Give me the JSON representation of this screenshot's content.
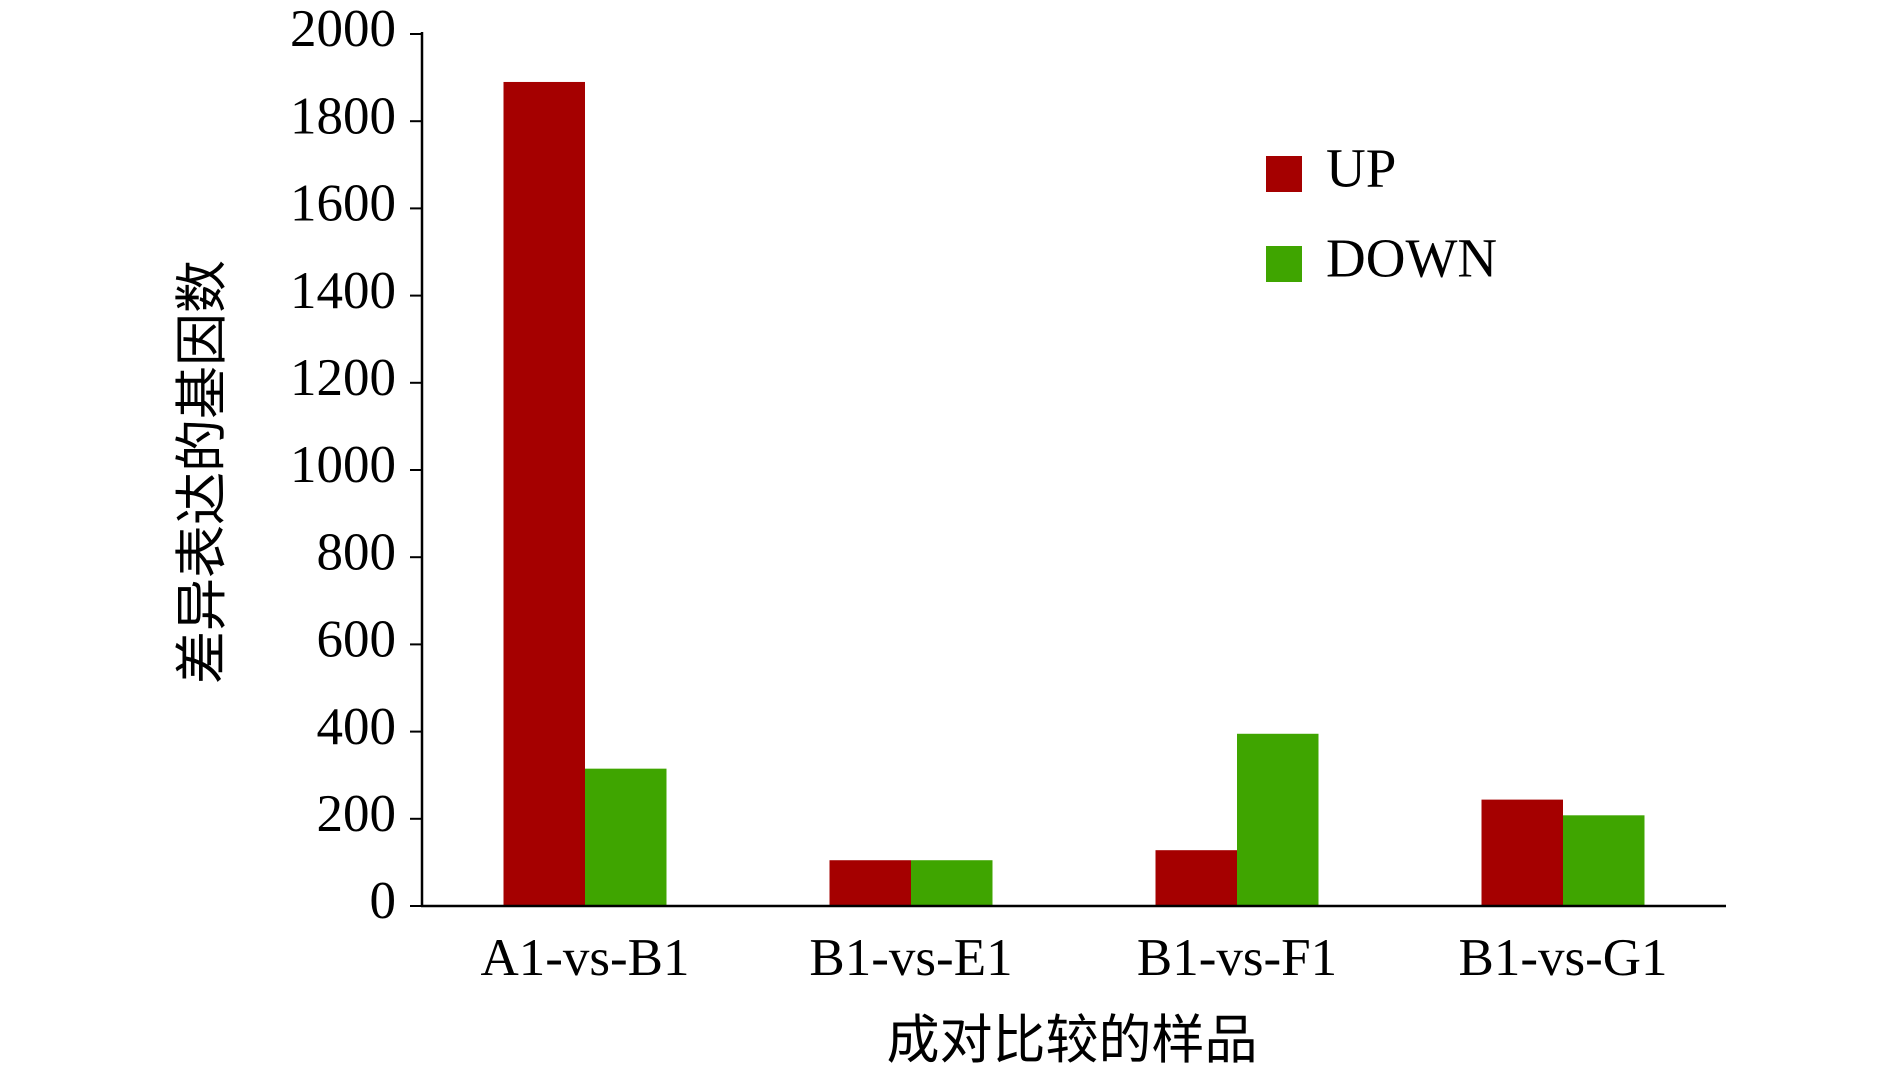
{
  "chart_data": {
    "type": "bar",
    "x_label": "成对比较的样品",
    "y_label": "差异表达的基因数",
    "categories": [
      "A1-vs-B1",
      "B1-vs-E1",
      "B1-vs-F1",
      "B1-vs-G1"
    ],
    "series": [
      {
        "name": "UP",
        "color": "#a50000",
        "values": [
          1890,
          105,
          128,
          244
        ]
      },
      {
        "name": "DOWN",
        "color": "#3fa500",
        "values": [
          315,
          105,
          395,
          208
        ]
      }
    ],
    "ylim": [
      0,
      2000
    ],
    "yticks": [
      0,
      200,
      400,
      600,
      800,
      1000,
      1200,
      1400,
      1600,
      1800,
      2000
    ],
    "grid": false,
    "legend": "upper-right"
  }
}
